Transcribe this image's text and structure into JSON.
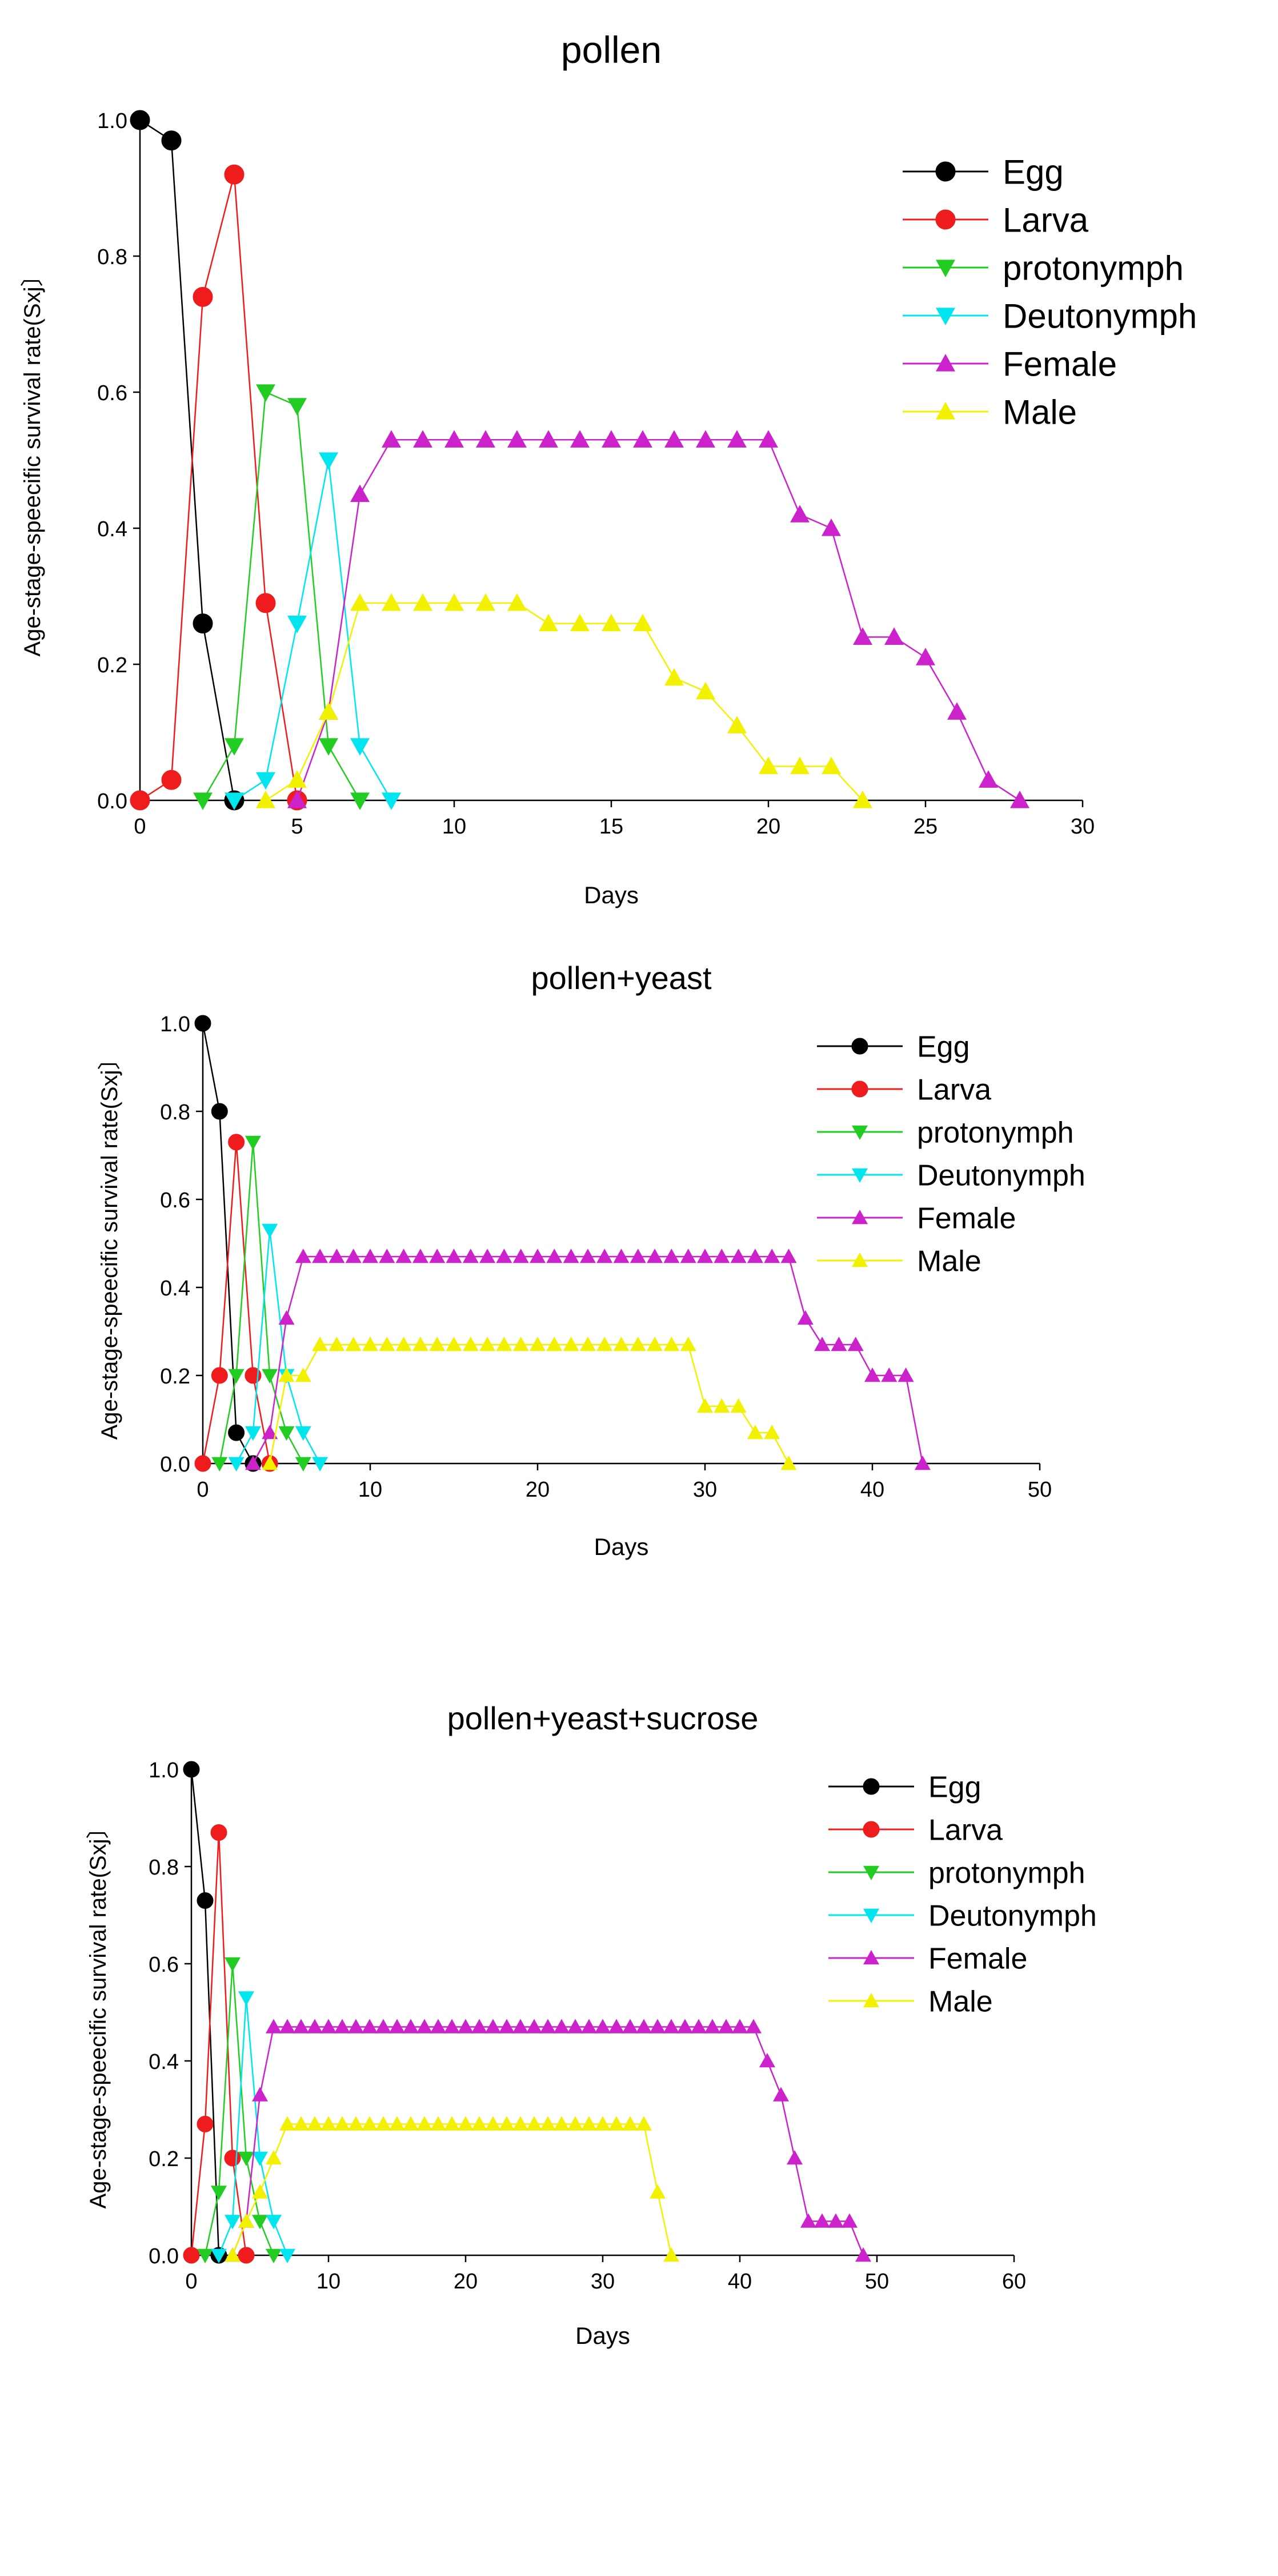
{
  "chart_data": [
    {
      "type": "line",
      "title": "pollen",
      "xlabel": "Days",
      "ylabel": "Age-stage-speecific survival rate(Sxj〕",
      "xlim": [
        0,
        30
      ],
      "ylim": [
        0,
        1.0
      ],
      "xticks": [
        "0",
        "5",
        "10",
        "15",
        "20",
        "25",
        "30"
      ],
      "yticks": [
        "0.0",
        "0.2",
        "0.4",
        "0.6",
        "0.8",
        "1.0"
      ],
      "legend_position": "top-right",
      "series": [
        {
          "name": "Egg",
          "marker": "circle",
          "color": "#000000",
          "x": [
            0,
            1,
            2,
            3
          ],
          "y": [
            1.0,
            0.97,
            0.26,
            0.0
          ]
        },
        {
          "name": "Larva",
          "marker": "circle",
          "color": "#ee1c1c",
          "x": [
            0,
            1,
            2,
            3,
            4,
            5
          ],
          "y": [
            0.0,
            0.03,
            0.74,
            0.92,
            0.29,
            0.0
          ]
        },
        {
          "name": "protonymph",
          "marker": "triangle-down",
          "color": "#22cc22",
          "x": [
            2,
            3,
            4,
            5,
            6,
            7
          ],
          "y": [
            0.0,
            0.08,
            0.6,
            0.58,
            0.08,
            0.0
          ]
        },
        {
          "name": "Deutonymph",
          "marker": "triangle-down",
          "color": "#00e5ee",
          "x": [
            3,
            4,
            5,
            6,
            7,
            8
          ],
          "y": [
            0.0,
            0.03,
            0.26,
            0.5,
            0.08,
            0.0
          ]
        },
        {
          "name": "Female",
          "marker": "triangle-up",
          "color": "#cc22cc",
          "x": [
            5,
            6,
            7,
            8,
            9,
            10,
            11,
            12,
            13,
            14,
            15,
            16,
            17,
            18,
            19,
            20,
            21,
            22,
            23,
            24,
            25,
            26,
            27,
            28
          ],
          "y": [
            0.0,
            0.13,
            0.45,
            0.53,
            0.53,
            0.53,
            0.53,
            0.53,
            0.53,
            0.53,
            0.53,
            0.53,
            0.53,
            0.53,
            0.53,
            0.53,
            0.42,
            0.4,
            0.24,
            0.24,
            0.21,
            0.13,
            0.03,
            0.0
          ]
        },
        {
          "name": "Male",
          "marker": "triangle-up",
          "color": "#f2f200",
          "x": [
            4,
            5,
            6,
            7,
            8,
            9,
            10,
            11,
            12,
            13,
            14,
            15,
            16,
            17,
            18,
            19,
            20,
            21,
            22,
            23
          ],
          "y": [
            0.0,
            0.03,
            0.13,
            0.29,
            0.29,
            0.29,
            0.29,
            0.29,
            0.29,
            0.26,
            0.26,
            0.26,
            0.26,
            0.18,
            0.16,
            0.11,
            0.05,
            0.05,
            0.05,
            0.0
          ]
        }
      ]
    },
    {
      "type": "line",
      "title": "pollen+yeast",
      "xlabel": "Days",
      "ylabel": "Age-stage-speecific survival rate(Sxj〕",
      "xlim": [
        0,
        50
      ],
      "ylim": [
        0,
        1.0
      ],
      "xticks": [
        "0",
        "10",
        "20",
        "30",
        "40",
        "50"
      ],
      "yticks": [
        "0.0",
        "0.2",
        "0.4",
        "0.6",
        "0.8",
        "1.0"
      ],
      "legend_position": "top-right",
      "series": [
        {
          "name": "Egg",
          "marker": "circle",
          "color": "#000000",
          "x": [
            0,
            1,
            2,
            3
          ],
          "y": [
            1.0,
            0.8,
            0.07,
            0.0
          ]
        },
        {
          "name": "Larva",
          "marker": "circle",
          "color": "#ee1c1c",
          "x": [
            0,
            1,
            2,
            3,
            4
          ],
          "y": [
            0.0,
            0.2,
            0.73,
            0.2,
            0.0
          ]
        },
        {
          "name": "protonymph",
          "marker": "triangle-down",
          "color": "#22cc22",
          "x": [
            1,
            2,
            3,
            4,
            5,
            6
          ],
          "y": [
            0.0,
            0.2,
            0.73,
            0.2,
            0.07,
            0.0
          ]
        },
        {
          "name": "Deutonymph",
          "marker": "triangle-down",
          "color": "#00e5ee",
          "x": [
            2,
            3,
            4,
            5,
            6,
            7
          ],
          "y": [
            0.0,
            0.07,
            0.53,
            0.2,
            0.07,
            0.0
          ]
        },
        {
          "name": "Female",
          "marker": "triangle-up",
          "color": "#cc22cc",
          "x": [
            3,
            4,
            5,
            6,
            7,
            8,
            9,
            10,
            11,
            12,
            13,
            14,
            15,
            16,
            17,
            18,
            19,
            20,
            21,
            22,
            23,
            24,
            25,
            26,
            27,
            28,
            29,
            30,
            31,
            32,
            33,
            34,
            35,
            36,
            37,
            38,
            39,
            40,
            41,
            42,
            43
          ],
          "y": [
            0.0,
            0.07,
            0.33,
            0.47,
            0.47,
            0.47,
            0.47,
            0.47,
            0.47,
            0.47,
            0.47,
            0.47,
            0.47,
            0.47,
            0.47,
            0.47,
            0.47,
            0.47,
            0.47,
            0.47,
            0.47,
            0.47,
            0.47,
            0.47,
            0.47,
            0.47,
            0.47,
            0.47,
            0.47,
            0.47,
            0.47,
            0.47,
            0.47,
            0.33,
            0.27,
            0.27,
            0.27,
            0.2,
            0.2,
            0.2,
            0.0
          ]
        },
        {
          "name": "Male",
          "marker": "triangle-up",
          "color": "#f2f200",
          "x": [
            4,
            5,
            6,
            7,
            8,
            9,
            10,
            11,
            12,
            13,
            14,
            15,
            16,
            17,
            18,
            19,
            20,
            21,
            22,
            23,
            24,
            25,
            26,
            27,
            28,
            29,
            30,
            31,
            32,
            33,
            34,
            35
          ],
          "y": [
            0.0,
            0.2,
            0.2,
            0.27,
            0.27,
            0.27,
            0.27,
            0.27,
            0.27,
            0.27,
            0.27,
            0.27,
            0.27,
            0.27,
            0.27,
            0.27,
            0.27,
            0.27,
            0.27,
            0.27,
            0.27,
            0.27,
            0.27,
            0.27,
            0.27,
            0.27,
            0.13,
            0.13,
            0.13,
            0.07,
            0.07,
            0.0
          ]
        }
      ]
    },
    {
      "type": "line",
      "title": "pollen+yeast+sucrose",
      "xlabel": "Days",
      "ylabel": "Age-stage-speecific survival rate(Sxj〕",
      "xlim": [
        0,
        60
      ],
      "ylim": [
        0,
        1.0
      ],
      "xticks": [
        "0",
        "10",
        "20",
        "30",
        "40",
        "50",
        "60"
      ],
      "yticks": [
        "0.0",
        "0.2",
        "0.4",
        "0.6",
        "0.8",
        "1.0"
      ],
      "legend_position": "top-right",
      "series": [
        {
          "name": "Egg",
          "marker": "circle",
          "color": "#000000",
          "x": [
            0,
            1,
            2
          ],
          "y": [
            1.0,
            0.73,
            0.0
          ]
        },
        {
          "name": "Larva",
          "marker": "circle",
          "color": "#ee1c1c",
          "x": [
            0,
            1,
            2,
            3,
            4
          ],
          "y": [
            0.0,
            0.27,
            0.87,
            0.2,
            0.0
          ]
        },
        {
          "name": "protonymph",
          "marker": "triangle-down",
          "color": "#22cc22",
          "x": [
            1,
            2,
            3,
            4,
            5,
            6
          ],
          "y": [
            0.0,
            0.13,
            0.6,
            0.2,
            0.07,
            0.0
          ]
        },
        {
          "name": "Deutonymph",
          "marker": "triangle-down",
          "color": "#00e5ee",
          "x": [
            2,
            3,
            4,
            5,
            6,
            7
          ],
          "y": [
            0.0,
            0.07,
            0.53,
            0.2,
            0.07,
            0.0
          ]
        },
        {
          "name": "Female",
          "marker": "triangle-up",
          "color": "#cc22cc",
          "x": [
            3,
            4,
            5,
            6,
            7,
            8,
            9,
            10,
            11,
            12,
            13,
            14,
            15,
            16,
            17,
            18,
            19,
            20,
            21,
            22,
            23,
            24,
            25,
            26,
            27,
            28,
            29,
            30,
            31,
            32,
            33,
            34,
            35,
            36,
            37,
            38,
            39,
            40,
            41,
            42,
            43,
            44,
            45,
            46,
            47,
            48,
            49
          ],
          "y": [
            0.0,
            0.07,
            0.33,
            0.47,
            0.47,
            0.47,
            0.47,
            0.47,
            0.47,
            0.47,
            0.47,
            0.47,
            0.47,
            0.47,
            0.47,
            0.47,
            0.47,
            0.47,
            0.47,
            0.47,
            0.47,
            0.47,
            0.47,
            0.47,
            0.47,
            0.47,
            0.47,
            0.47,
            0.47,
            0.47,
            0.47,
            0.47,
            0.47,
            0.47,
            0.47,
            0.47,
            0.47,
            0.47,
            0.47,
            0.4,
            0.33,
            0.2,
            0.07,
            0.07,
            0.07,
            0.07,
            0.0
          ]
        },
        {
          "name": "Male",
          "marker": "triangle-up",
          "color": "#f2f200",
          "x": [
            3,
            4,
            5,
            6,
            7,
            8,
            9,
            10,
            11,
            12,
            13,
            14,
            15,
            16,
            17,
            18,
            19,
            20,
            21,
            22,
            23,
            24,
            25,
            26,
            27,
            28,
            29,
            30,
            31,
            32,
            33,
            34,
            35
          ],
          "y": [
            0.0,
            0.07,
            0.13,
            0.2,
            0.27,
            0.27,
            0.27,
            0.27,
            0.27,
            0.27,
            0.27,
            0.27,
            0.27,
            0.27,
            0.27,
            0.27,
            0.27,
            0.27,
            0.27,
            0.27,
            0.27,
            0.27,
            0.27,
            0.27,
            0.27,
            0.27,
            0.27,
            0.27,
            0.27,
            0.27,
            0.27,
            0.13,
            0.0
          ]
        }
      ]
    }
  ]
}
